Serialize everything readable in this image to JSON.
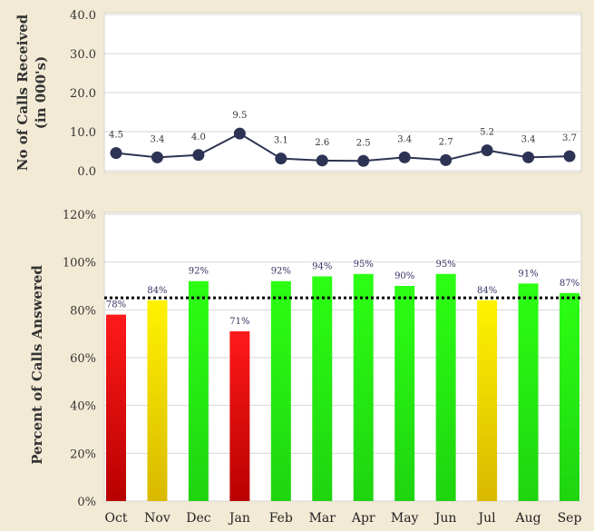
{
  "colors": {
    "background": "#f3ead6",
    "plot_bg": "#ffffff",
    "line_marker": "#2d3354",
    "bar_red": "#e01010",
    "bar_yellow": "#f0e010",
    "bar_green": "#22ee11",
    "target_line": "#000000"
  },
  "chart_data": [
    {
      "type": "line",
      "categories": [
        "Oct",
        "Nov",
        "Dec",
        "Jan",
        "Feb",
        "Mar",
        "Apr",
        "May",
        "Jun",
        "Jul",
        "Aug",
        "Sep"
      ],
      "values": [
        4.5,
        3.4,
        4.0,
        9.5,
        3.1,
        2.6,
        2.5,
        3.4,
        2.7,
        5.2,
        3.4,
        3.7
      ],
      "data_labels": [
        "4.5",
        "3.4",
        "4.0",
        "9.5",
        "3.1",
        "2.6",
        "2.5",
        "3.4",
        "2.7",
        "5.2",
        "3.4",
        "3.7"
      ],
      "ylabel_line1": "No of Calls Received",
      "ylabel_line2": "(in 000's)",
      "ylim": [
        0,
        40
      ],
      "yticks": [
        "0.0",
        "10.0",
        "20.0",
        "30.0",
        "40.0"
      ],
      "grid": true
    },
    {
      "type": "bar",
      "categories": [
        "Oct",
        "Nov",
        "Dec",
        "Jan",
        "Feb",
        "Mar",
        "Apr",
        "May",
        "Jun",
        "Jul",
        "Aug",
        "Sep"
      ],
      "values": [
        78,
        84,
        92,
        71,
        92,
        94,
        95,
        90,
        95,
        84,
        91,
        87
      ],
      "data_labels": [
        "78%",
        "84%",
        "92%",
        "71%",
        "92%",
        "94%",
        "95%",
        "90%",
        "95%",
        "84%",
        "91%",
        "87%"
      ],
      "bar_status": [
        "red",
        "yellow",
        "green",
        "red",
        "green",
        "green",
        "green",
        "green",
        "green",
        "yellow",
        "green",
        "green"
      ],
      "target_value": 85,
      "target_style": "dotted",
      "ylabel": "Percent of Calls Answered",
      "ylim": [
        0,
        120
      ],
      "yticks": [
        "0%",
        "20%",
        "40%",
        "60%",
        "80%",
        "100%",
        "120%"
      ],
      "grid": true
    }
  ]
}
